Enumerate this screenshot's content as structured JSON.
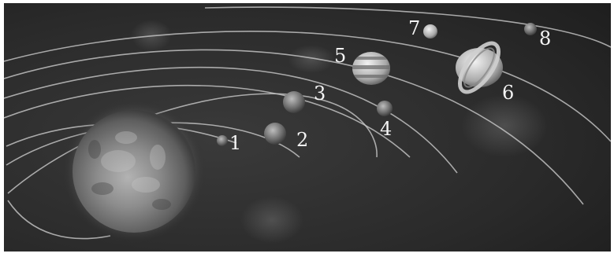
{
  "figure": {
    "planet_labels": [
      "1",
      "2",
      "3",
      "4",
      "5",
      "6",
      "7",
      "8"
    ]
  },
  "colors": {
    "space": "#262626",
    "orbit": "#c9c9c9",
    "sun_core": "#9a9a9a",
    "sun_edge": "#4a4a4a",
    "label": "#f4f4f4"
  }
}
